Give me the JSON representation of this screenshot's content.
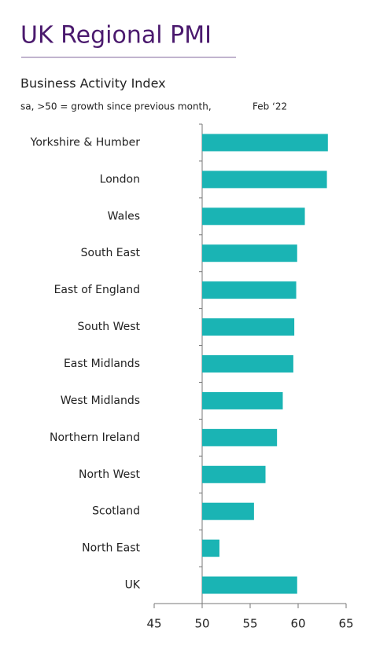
{
  "chart_data": {
    "type": "hbar",
    "title": "UK Regional PMI",
    "subtitle": "Business Activity Index",
    "note": "sa, >50 = growth since previous month,",
    "date": "Feb ‘22",
    "categories": [
      "Yorkshire & Humber",
      "London",
      "Wales",
      "South East",
      "East of England",
      "South West",
      "East Midlands",
      "West Midlands",
      "Northern Ireland",
      "North West",
      "Scotland",
      "North East",
      "UK"
    ],
    "values": [
      63.1,
      63.0,
      60.7,
      59.9,
      59.8,
      59.6,
      59.5,
      58.4,
      57.8,
      56.6,
      55.4,
      51.8,
      59.9
    ],
    "color": "#1ab4b4",
    "bar_base": 50,
    "xlim": [
      45,
      65
    ],
    "xticks": [
      45,
      50,
      55,
      60,
      65
    ],
    "grid": false
  }
}
